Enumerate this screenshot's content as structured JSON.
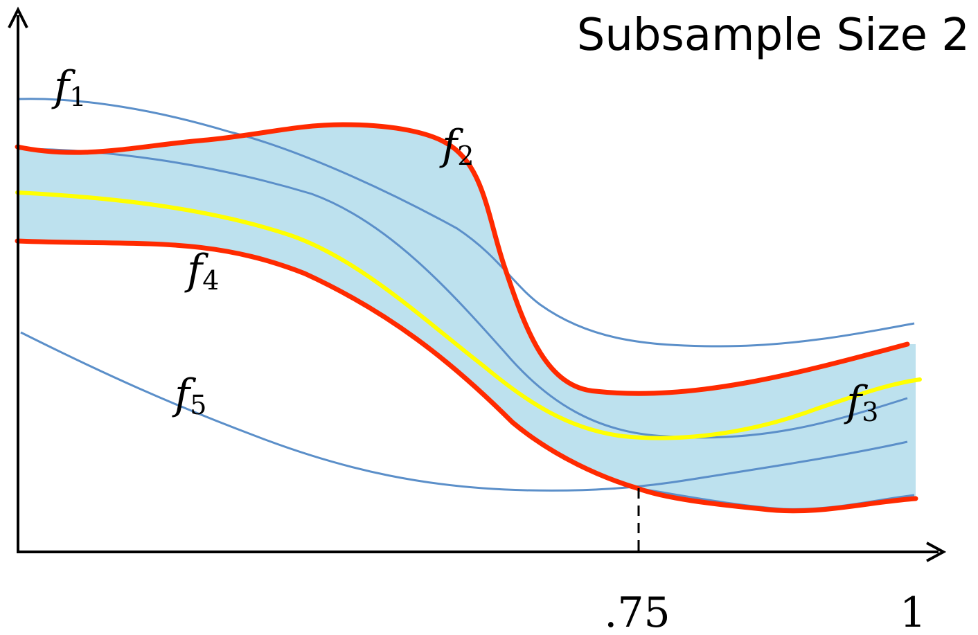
{
  "title": "Subsample Size 2",
  "x_tick_labels": [
    ".75",
    "1"
  ],
  "curve_labels": [
    {
      "letter": "f",
      "sub": "1"
    },
    {
      "letter": "f",
      "sub": "2"
    },
    {
      "letter": "f",
      "sub": "3"
    },
    {
      "letter": "f",
      "sub": "4"
    },
    {
      "letter": "f",
      "sub": "5"
    }
  ],
  "colors": {
    "band_fill": "#bde1ee",
    "function_curve": "#5b8fc9",
    "envelope": "#ff2a00",
    "median": "#ffff00",
    "axis": "#000000"
  }
}
